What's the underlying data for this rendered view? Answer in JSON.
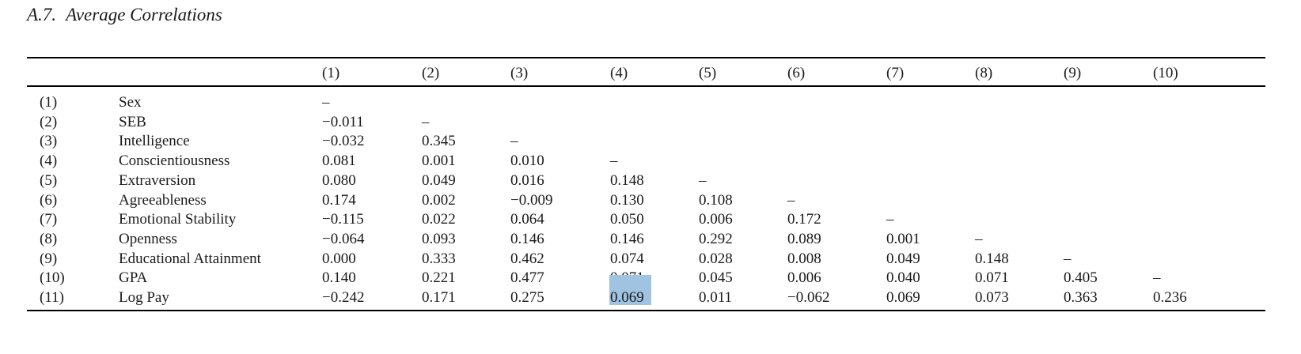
{
  "section": {
    "number": "A.7.",
    "title": "Average Correlations"
  },
  "table": {
    "columns": [
      "(1)",
      "(2)",
      "(3)",
      "(4)",
      "(5)",
      "(6)",
      "(7)",
      "(8)",
      "(9)",
      "(10)"
    ],
    "rows": [
      {
        "id": "(1)",
        "label": "Sex",
        "values": [
          "–"
        ]
      },
      {
        "id": "(2)",
        "label": "SEB",
        "values": [
          "−0.011",
          "–"
        ]
      },
      {
        "id": "(3)",
        "label": "Intelligence",
        "values": [
          "−0.032",
          "0.345",
          "–"
        ]
      },
      {
        "id": "(4)",
        "label": "Conscientiousness",
        "values": [
          "0.081",
          "0.001",
          "0.010",
          "–"
        ]
      },
      {
        "id": "(5)",
        "label": "Extraversion",
        "values": [
          "0.080",
          "0.049",
          "0.016",
          "0.148",
          "–"
        ]
      },
      {
        "id": "(6)",
        "label": "Agreeableness",
        "values": [
          "0.174",
          "0.002",
          "−0.009",
          "0.130",
          "0.108",
          "–"
        ]
      },
      {
        "id": "(7)",
        "label": "Emotional Stability",
        "values": [
          "−0.115",
          "0.022",
          "0.064",
          "0.050",
          "0.006",
          "0.172",
          "–"
        ]
      },
      {
        "id": "(8)",
        "label": "Openness",
        "values": [
          "−0.064",
          "0.093",
          "0.146",
          "0.146",
          "0.292",
          "0.089",
          "0.001",
          "–"
        ]
      },
      {
        "id": "(9)",
        "label": "Educational Attainment",
        "values": [
          "0.000",
          "0.333",
          "0.462",
          "0.074",
          "0.028",
          "0.008",
          "0.049",
          "0.148",
          "–"
        ]
      },
      {
        "id": "(10)",
        "label": "GPA",
        "values": [
          "0.140",
          "0.221",
          "0.477",
          "0.071",
          "0.045",
          "0.006",
          "0.040",
          "0.071",
          "0.405",
          "–"
        ]
      },
      {
        "id": "(11)",
        "label": "Log Pay",
        "values": [
          "−0.242",
          "0.171",
          "0.275",
          "0.069",
          "0.011",
          "−0.062",
          "0.069",
          "0.073",
          "0.363",
          "0.236"
        ]
      }
    ],
    "selected_cell": {
      "row": 10,
      "col": 3
    },
    "selection_color": "#9fc3e1"
  }
}
